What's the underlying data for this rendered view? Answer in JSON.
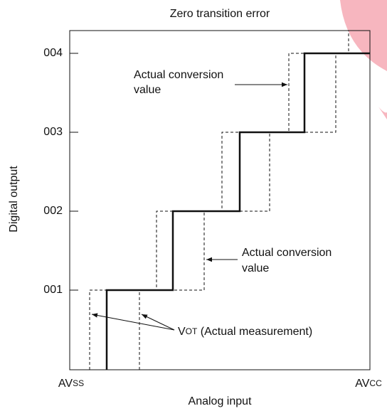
{
  "title": "Zero transition error",
  "y_axis": {
    "label": "Digital output",
    "ticks": [
      "004",
      "003",
      "002",
      "001"
    ]
  },
  "x_axis": {
    "label": "Analog input",
    "left": {
      "main": "AV",
      "sub": "SS"
    },
    "right": {
      "main": "AV",
      "sub": "CC"
    }
  },
  "annotations": {
    "upper": [
      "Actual conversion",
      "value"
    ],
    "lower": [
      "Actual conversion",
      "value"
    ],
    "measurement": {
      "main": "V",
      "sub": "OT",
      "rest": " (Actual measurement)"
    }
  }
}
